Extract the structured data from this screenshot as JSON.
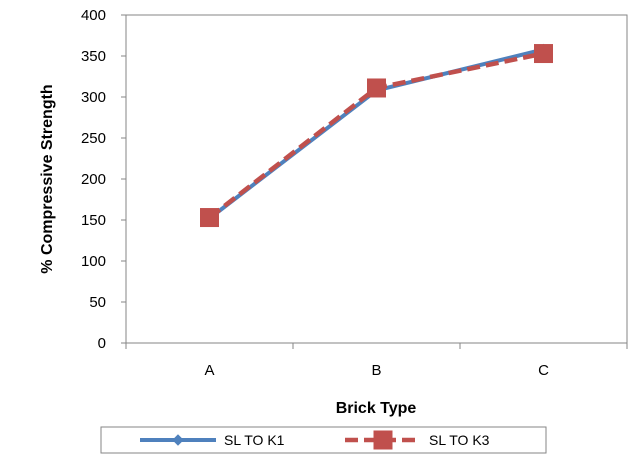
{
  "chart_data": {
    "type": "line",
    "title": "",
    "xlabel": "Brick Type",
    "ylabel": "% Compressive Strength",
    "categories": [
      "A",
      "B",
      "C"
    ],
    "ylim": [
      0,
      400
    ],
    "yticks": [
      0,
      50,
      100,
      150,
      200,
      250,
      300,
      350,
      400
    ],
    "grid": false,
    "legend_position": "bottom",
    "series": [
      {
        "name": "SL TO K1",
        "values": [
          152,
          308,
          358
        ],
        "color": "#4f81bd",
        "marker": "diamond",
        "line_style": "solid"
      },
      {
        "name": "SL TO K3",
        "values": [
          153,
          311,
          353
        ],
        "color": "#c0504d",
        "marker": "square",
        "line_style": "dashed"
      }
    ]
  }
}
